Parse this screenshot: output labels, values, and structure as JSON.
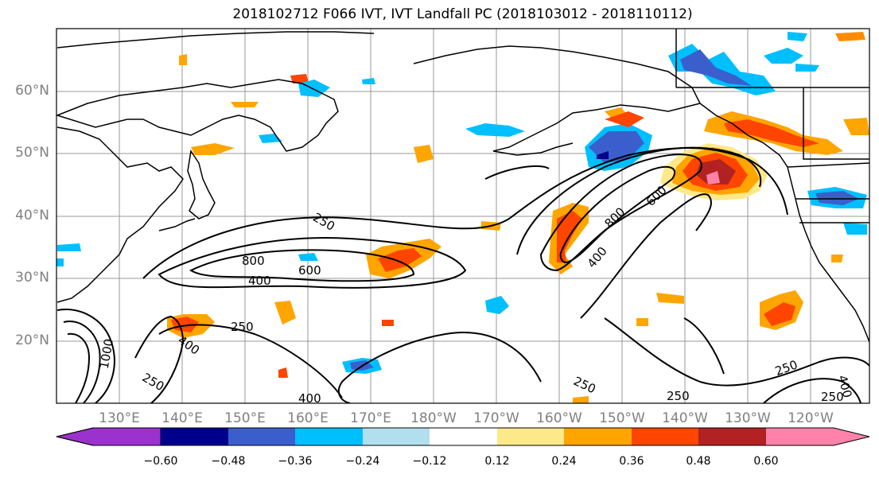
{
  "title": "2018102712 F066 IVT, IVT Landfall PC (2018103012 - 2018110112)",
  "lat_labels": [
    "60°N",
    "50°N",
    "40°N",
    "30°N",
    "20°N"
  ],
  "lon_labels": [
    "130°E",
    "140°E",
    "150°E",
    "160°E",
    "170°E",
    "180°W",
    "170°W",
    "160°W",
    "150°W",
    "140°W",
    "130°W",
    "120°W"
  ],
  "contour_labels": [
    "250",
    "800",
    "400",
    "600",
    "250",
    "400",
    "250",
    "600",
    "800",
    "400",
    "250",
    "250",
    "250",
    "400",
    "1000",
    "250",
    "400"
  ],
  "colorbar": {
    "tick_labels": [
      "−0.60",
      "−0.48",
      "−0.36",
      "−0.24",
      "−0.12",
      "0.12",
      "0.24",
      "0.36",
      "0.48",
      "0.60"
    ],
    "colors": [
      "#9b32cd",
      "#00008b",
      "#3a5fcd",
      "#00bfff",
      "#b2dfee",
      "#ffffff",
      "#fee98a",
      "#ffa500",
      "#ff4500",
      "#b22222",
      "#ff82ab"
    ]
  }
}
